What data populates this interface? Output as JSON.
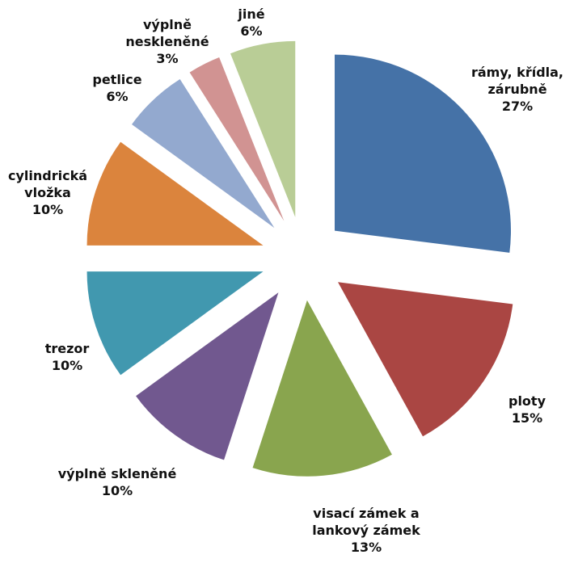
{
  "chart_data": {
    "type": "pie",
    "title": "",
    "exploded": true,
    "slices": [
      {
        "label_lines": [
          "rámy, křídla,",
          "zárubně"
        ],
        "value": 27,
        "value_label": "27%",
        "color": "#4572a7"
      },
      {
        "label_lines": [
          "ploty"
        ],
        "value": 15,
        "value_label": "15%",
        "color": "#aa4643"
      },
      {
        "label_lines": [
          "visací zámek a",
          "lankový zámek"
        ],
        "value": 13,
        "value_label": "13%",
        "color": "#89a54e"
      },
      {
        "label_lines": [
          "výplně skleněné"
        ],
        "value": 10,
        "value_label": "10%",
        "color": "#71588f"
      },
      {
        "label_lines": [
          "trezor"
        ],
        "value": 10,
        "value_label": "10%",
        "color": "#4198af"
      },
      {
        "label_lines": [
          "cylindrická",
          "vložka"
        ],
        "value": 10,
        "value_label": "10%",
        "color": "#db843d"
      },
      {
        "label_lines": [
          "petlice"
        ],
        "value": 6,
        "value_label": "6%",
        "color": "#93a9cf"
      },
      {
        "label_lines": [
          "výplně",
          "neskleněné"
        ],
        "value": 3,
        "value_label": "3%",
        "color": "#d19392"
      },
      {
        "label_lines": [
          "jiné"
        ],
        "value": 6,
        "value_label": "6%",
        "color": "#b9cd96"
      }
    ]
  }
}
